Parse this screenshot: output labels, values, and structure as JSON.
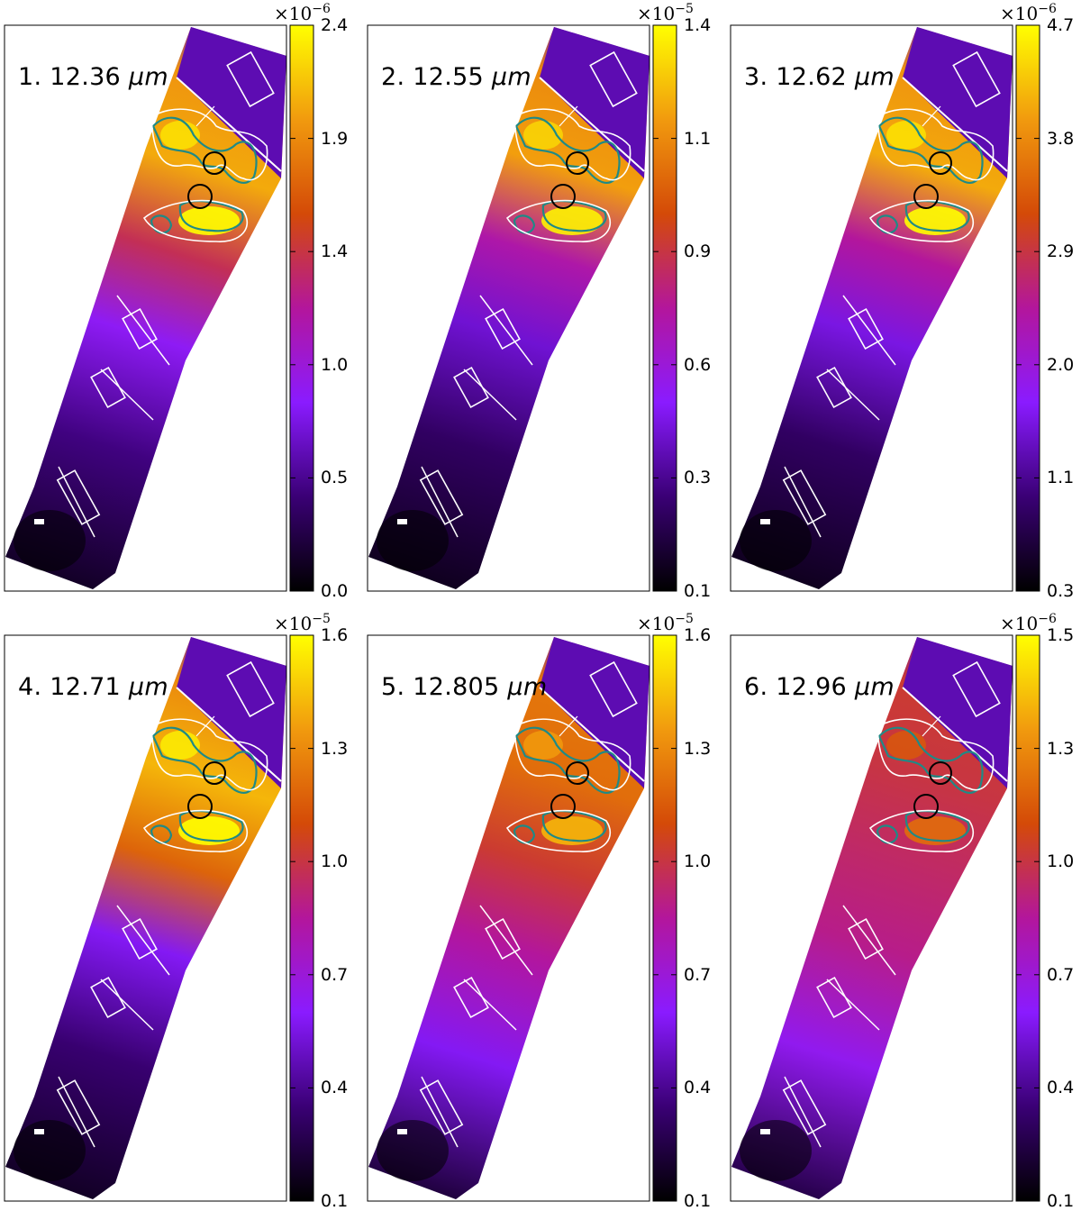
{
  "chart_data": [
    {
      "type": "heatmap",
      "panel_label": "1. 12.36",
      "unit": "μm",
      "colorbar": {
        "multiplier_base": "×10",
        "exponent": "−6",
        "ticks": [
          "0.0",
          "0.5",
          "1.0",
          "1.4",
          "1.9",
          "2.4"
        ],
        "range": [
          0.0,
          2.4
        ]
      },
      "colormap": [
        "#000000",
        "#3a0075",
        "#8a1bff",
        "#b3169c",
        "#d44a08",
        "#f19a0e",
        "#ffff00"
      ]
    },
    {
      "type": "heatmap",
      "panel_label": "2. 12.55",
      "unit": "μm",
      "colorbar": {
        "multiplier_base": "×10",
        "exponent": "−5",
        "ticks": [
          "0.1",
          "0.3",
          "0.6",
          "0.9",
          "1.1",
          "1.4"
        ],
        "range": [
          0.1,
          1.4
        ]
      },
      "colormap": [
        "#000000",
        "#3a0075",
        "#8a1bff",
        "#b3169c",
        "#d44a08",
        "#f19a0e",
        "#ffff00"
      ]
    },
    {
      "type": "heatmap",
      "panel_label": "3. 12.62",
      "unit": "μm",
      "colorbar": {
        "multiplier_base": "×10",
        "exponent": "−6",
        "ticks": [
          "0.3",
          "1.1",
          "2.0",
          "2.9",
          "3.8",
          "4.7"
        ],
        "range": [
          0.3,
          4.7
        ]
      },
      "colormap": [
        "#000000",
        "#3a0075",
        "#8a1bff",
        "#b3169c",
        "#d44a08",
        "#f19a0e",
        "#ffff00"
      ]
    },
    {
      "type": "heatmap",
      "panel_label": "4. 12.71",
      "unit": "μm",
      "colorbar": {
        "multiplier_base": "×10",
        "exponent": "−5",
        "ticks": [
          "0.1",
          "0.4",
          "0.7",
          "1.0",
          "1.3",
          "1.6"
        ],
        "range": [
          0.1,
          1.6
        ]
      },
      "colormap": [
        "#000000",
        "#3a0075",
        "#8a1bff",
        "#b3169c",
        "#d44a08",
        "#f19a0e",
        "#ffff00"
      ]
    },
    {
      "type": "heatmap",
      "panel_label": "5. 12.805",
      "unit": "μm",
      "colorbar": {
        "multiplier_base": "×10",
        "exponent": "−5",
        "ticks": [
          "0.1",
          "0.4",
          "0.7",
          "1.0",
          "1.3",
          "1.6"
        ],
        "range": [
          0.1,
          1.6
        ]
      },
      "colormap": [
        "#000000",
        "#3a0075",
        "#8a1bff",
        "#b3169c",
        "#d44a08",
        "#f19a0e",
        "#ffff00"
      ]
    },
    {
      "type": "heatmap",
      "panel_label": "6. 12.96",
      "unit": "μm",
      "colorbar": {
        "multiplier_base": "×10",
        "exponent": "−6",
        "ticks": [
          "0.1",
          "0.4",
          "0.7",
          "1.0",
          "1.3",
          "1.5"
        ],
        "range": [
          0.1,
          1.5
        ]
      },
      "colormap": [
        "#000000",
        "#3a0075",
        "#8a1bff",
        "#b3169c",
        "#d44a08",
        "#f19a0e",
        "#ffff00"
      ]
    }
  ],
  "colors": {
    "frame": "#000000",
    "overlay_white": "#ffffff",
    "contour_teal": "#1f8a86",
    "circle_black": "#000000"
  }
}
